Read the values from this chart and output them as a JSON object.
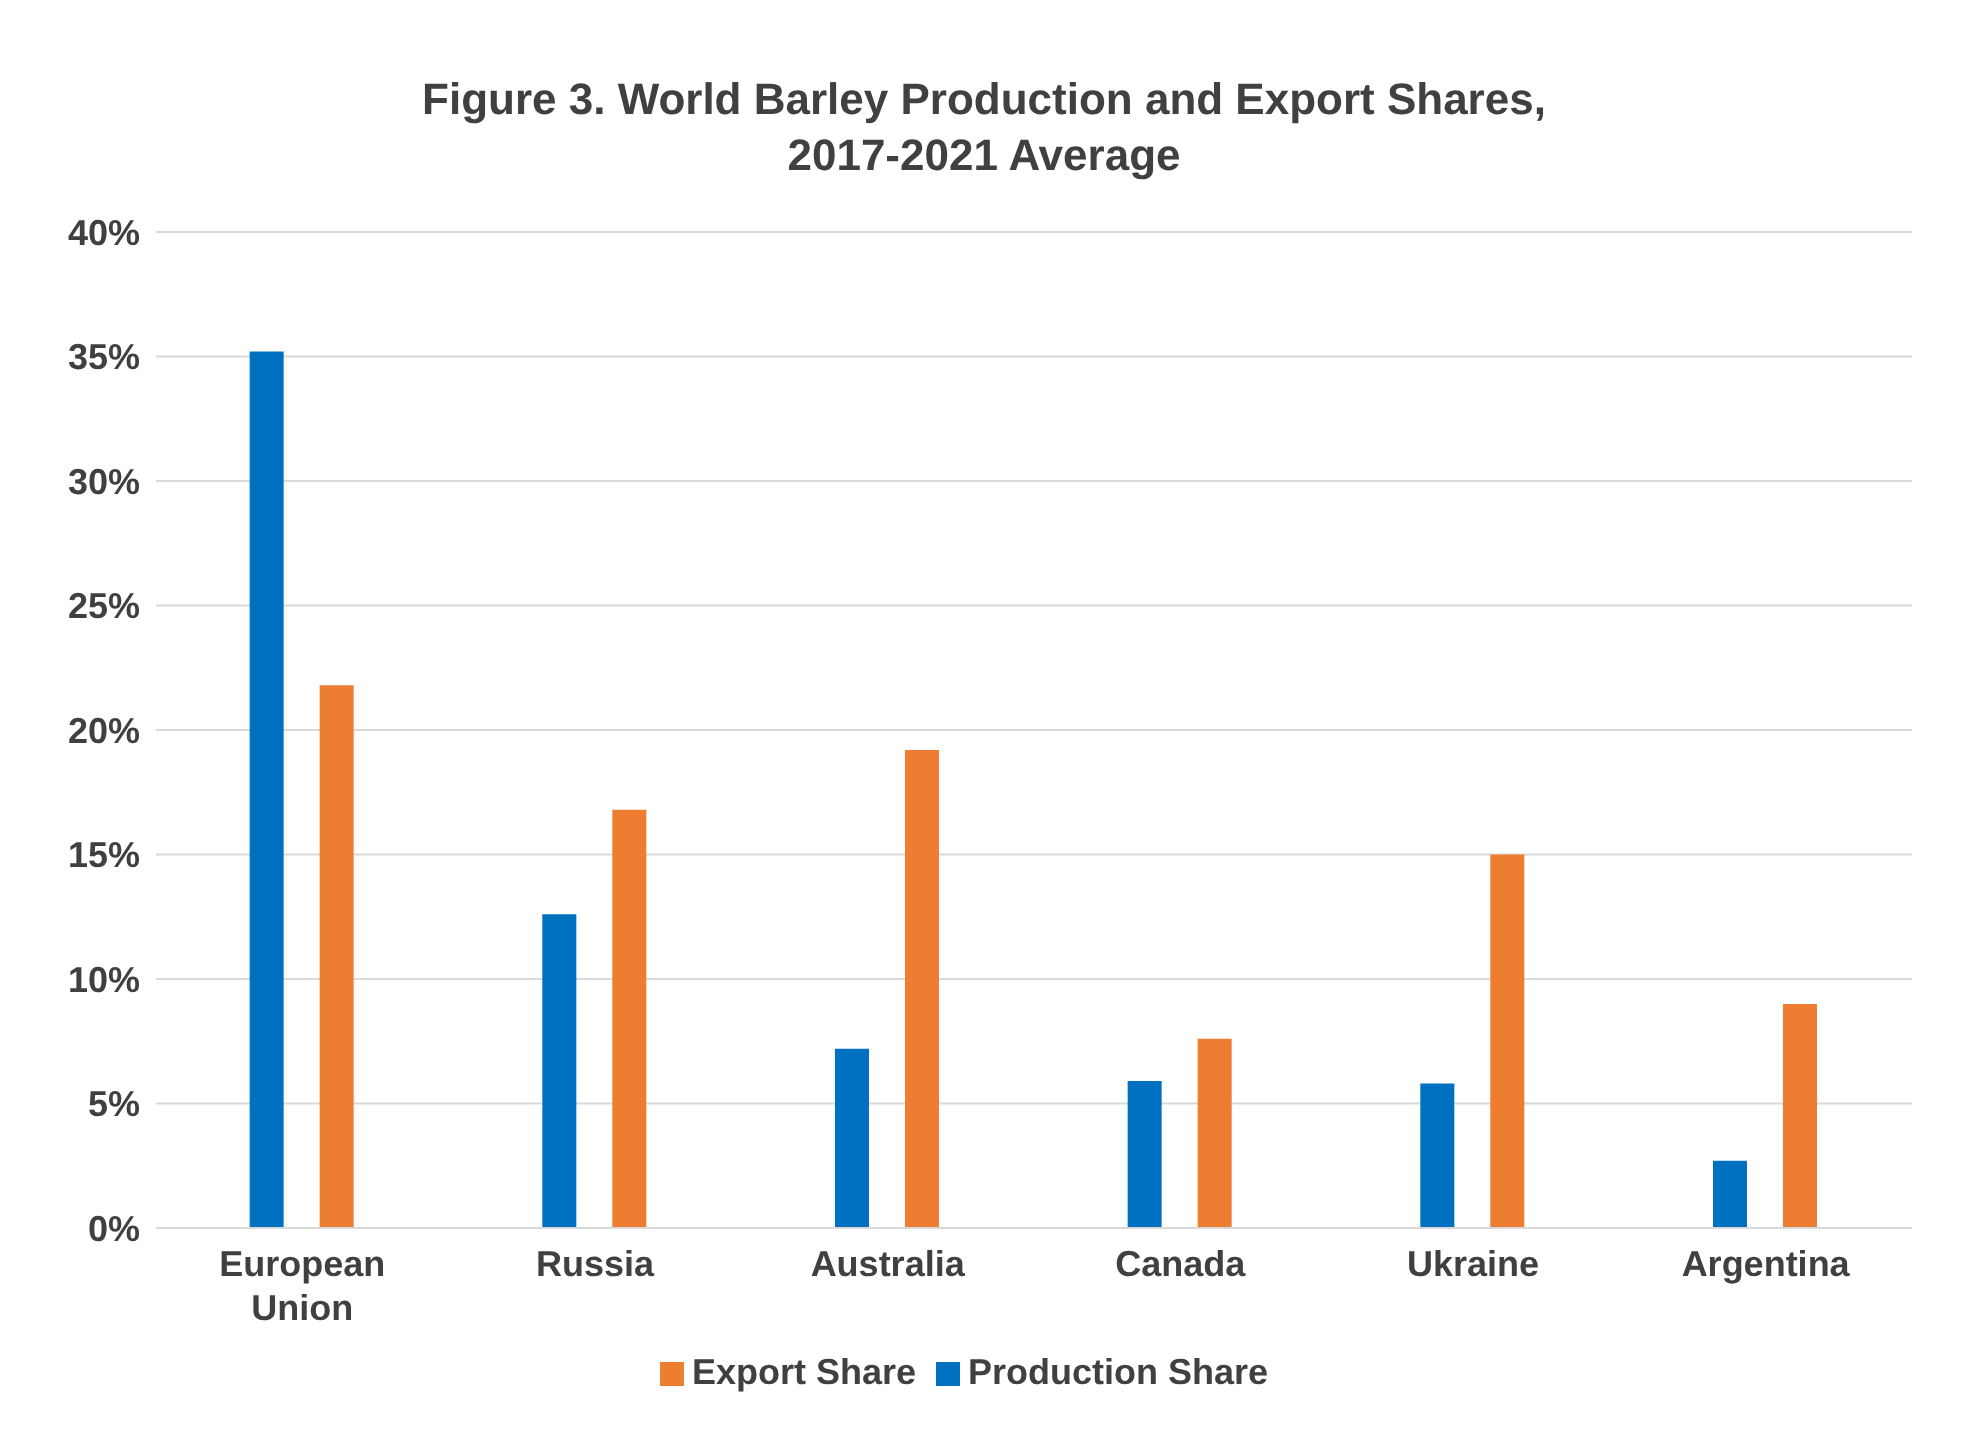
{
  "chart_data": {
    "type": "bar",
    "title": "Figure 3. World Barley Production and Export Shares, 2017-2021 Average",
    "categories": [
      "European Union",
      "Russia",
      "Australia",
      "Canada",
      "Ukraine",
      "Argentina"
    ],
    "series": [
      {
        "name": "Production Share",
        "color": "#0070c0",
        "values": [
          35.2,
          12.6,
          7.2,
          5.9,
          5.8,
          2.7
        ]
      },
      {
        "name": "Export Share",
        "color": "#ed7d31",
        "values": [
          21.8,
          16.8,
          19.2,
          7.6,
          15.0,
          9.0
        ]
      }
    ],
    "ylim": [
      0,
      40
    ],
    "yticks": [
      {
        "value": 0,
        "label": "0%"
      },
      {
        "value": 5,
        "label": "5%"
      },
      {
        "value": 10,
        "label": "10%"
      },
      {
        "value": 15,
        "label": "15%"
      },
      {
        "value": 20,
        "label": "20%"
      },
      {
        "value": 25,
        "label": "25%"
      },
      {
        "value": 30,
        "label": "30%"
      },
      {
        "value": 35,
        "label": "35%"
      },
      {
        "value": 40,
        "label": "40%"
      }
    ],
    "grid": "y",
    "legend": "bottom"
  }
}
